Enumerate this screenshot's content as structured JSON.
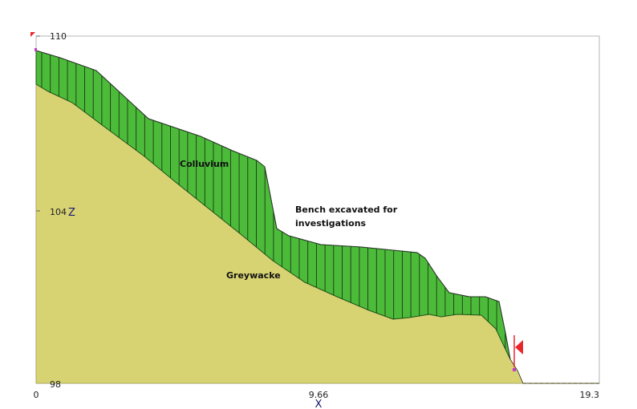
{
  "axes": {
    "x_label": "X",
    "z_label": "Z",
    "x_ticks": [
      "0",
      "9.66",
      "19.3"
    ],
    "z_ticks": [
      "110",
      "104",
      "98"
    ]
  },
  "labels": {
    "colluvium": "Colluvium",
    "bench_line1": "Bench excavated for",
    "bench_line2": "investigations",
    "greywacke": "Greywacke"
  },
  "colors": {
    "greywacke": "#d7d373",
    "colluvium": "#4cbb3a",
    "marker": "#e8262c",
    "frame": "#b4b4b4"
  }
}
